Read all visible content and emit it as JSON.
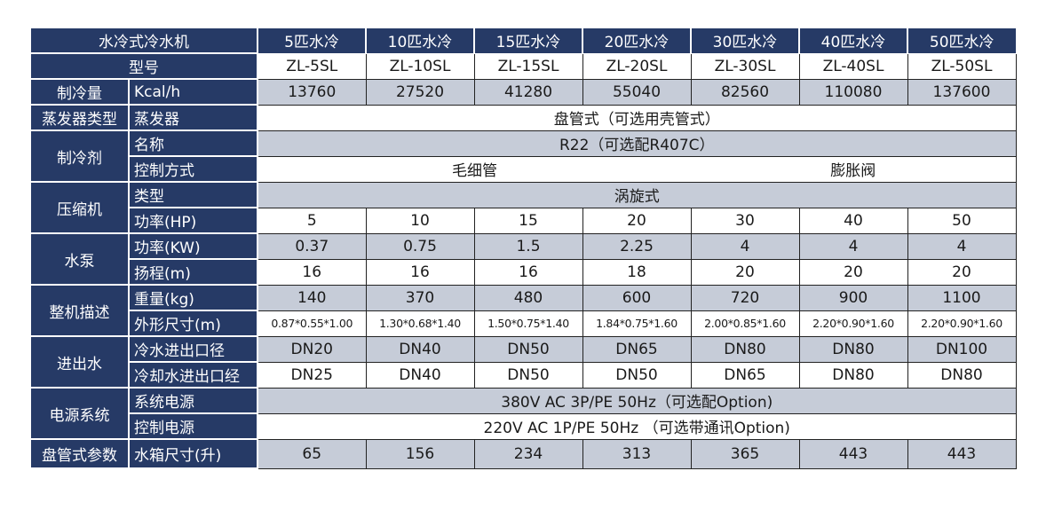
{
  "title": "水冷式冷水机",
  "columns": [
    "5匹水冷",
    "10匹水冷",
    "15匹水冷",
    "20匹水冷",
    "30匹水冷",
    "40匹水冷",
    "50匹水冷"
  ],
  "model": {
    "label": "型号",
    "values": [
      "ZL-5SL",
      "ZL-10SL",
      "ZL-15SL",
      "ZL-20SL",
      "ZL-30SL",
      "ZL-40SL",
      "ZL-50SL"
    ]
  },
  "cooling": {
    "group": "制冷量",
    "label": "Kcal/h",
    "values": [
      "13760",
      "27520",
      "41280",
      "55040",
      "82560",
      "110080",
      "137600"
    ]
  },
  "evaporator": {
    "group": "蒸发器类型",
    "label": "蒸发器",
    "value": "盘管式（可选用壳管式）"
  },
  "refrigerant": {
    "group": "制冷剂",
    "name_label": "名称",
    "name_value": "R22（可选配R407C）",
    "control_label": "控制方式",
    "control_a": "毛细管",
    "control_b": "膨胀阀"
  },
  "compressor": {
    "group": "压缩机",
    "type_label": "类型",
    "type_value": "涡旋式",
    "power_label": "功率(HP)",
    "power_values": [
      "5",
      "10",
      "15",
      "20",
      "30",
      "40",
      "50"
    ]
  },
  "pump": {
    "group": "水泵",
    "power_label": "功率(KW)",
    "power_values": [
      "0.37",
      "0.75",
      "1.5",
      "2.25",
      "4",
      "4",
      "4"
    ],
    "head_label": "扬程(m)",
    "head_values": [
      "16",
      "16",
      "16",
      "18",
      "20",
      "20",
      "20"
    ]
  },
  "machine": {
    "group": "整机描述",
    "weight_label": "重量(kg)",
    "weight_values": [
      "140",
      "370",
      "480",
      "600",
      "720",
      "900",
      "1100"
    ],
    "size_label": "外形尺寸(m)",
    "size_values": [
      "0.87*0.55*1.00",
      "1.30*0.68*1.40",
      "1.50*0.75*1.40",
      "1.84*0.75*1.60",
      "2.00*0.85*1.60",
      "2.20*0.90*1.60",
      "2.20*0.90*1.60"
    ]
  },
  "water": {
    "group": "进出水",
    "chilled_label": "冷水进出口径",
    "chilled_values": [
      "DN20",
      "DN40",
      "DN50",
      "DN65",
      "DN80",
      "DN80",
      "DN100"
    ],
    "cooling_label": "冷却水进出口经",
    "cooling_values": [
      "DN25",
      "DN40",
      "DN50",
      "DN50",
      "DN65",
      "DN80",
      "DN80"
    ]
  },
  "power": {
    "group": "电源系统",
    "system_label": "系统电源",
    "system_value": "380V AC 3P/PE 50Hz（可选配Option)",
    "control_label": "控制电源",
    "control_value": "220V AC 1P/PE 50Hz （可选带通讯Option)"
  },
  "coil": {
    "group": "盘管式参数",
    "tank_label": "水箱尺寸(升)",
    "tank_values": [
      "65",
      "156",
      "234",
      "313",
      "365",
      "443",
      "443"
    ]
  },
  "colors": {
    "header": "#263a66",
    "gray_row": "#c6ccd8"
  }
}
